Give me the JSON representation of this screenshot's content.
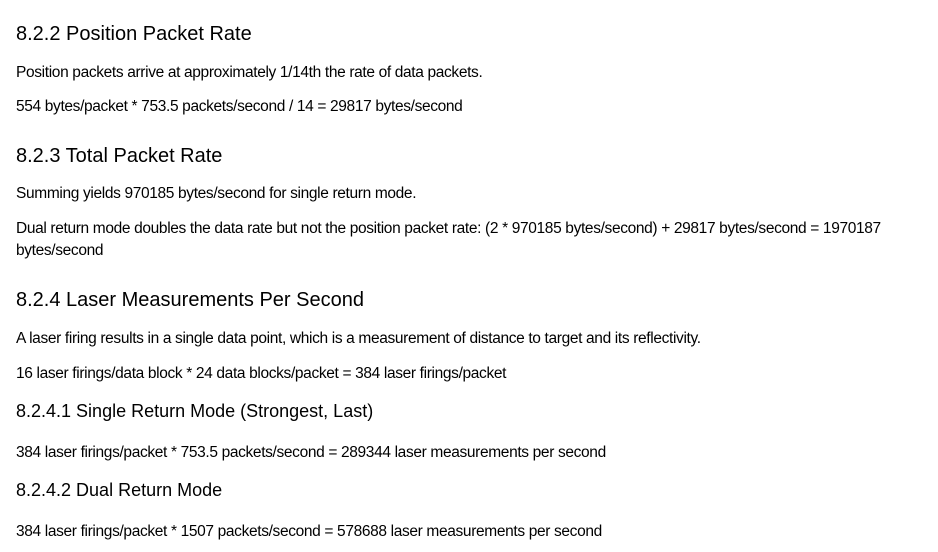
{
  "sections": [
    {
      "heading": "8.2.2 Position Packet Rate",
      "paragraphs": [
        "Position packets arrive at approximately 1/14th the rate of data packets.",
        "554 bytes/packet * 753.5 packets/second / 14 = 29817 bytes/second"
      ]
    },
    {
      "heading": "8.2.3 Total Packet Rate",
      "paragraphs": [
        "Summing yields 970185 bytes/second for single return mode.",
        "Dual return mode doubles the data rate but not the position packet rate: (2 * 970185 bytes/second) + 29817 bytes/second = 1970187 bytes/second"
      ]
    },
    {
      "heading": "8.2.4 Laser Measurements Per Second",
      "paragraphs": [
        "A laser firing results in a single data point, which is a measurement of distance to target and its reflectivity.",
        "16 laser firings/data block * 24 data blocks/packet = 384 laser firings/packet"
      ],
      "subsections": [
        {
          "heading": "8.2.4.1 Single Return Mode (Strongest, Last)",
          "paragraph": "384 laser firings/packet * 753.5 packets/second = 289344 laser measurements per second"
        },
        {
          "heading": "8.2.4.2 Dual Return Mode",
          "paragraph": "384 laser firings/packet * 1507 packets/second = 578688 laser measurements per second"
        }
      ]
    }
  ]
}
